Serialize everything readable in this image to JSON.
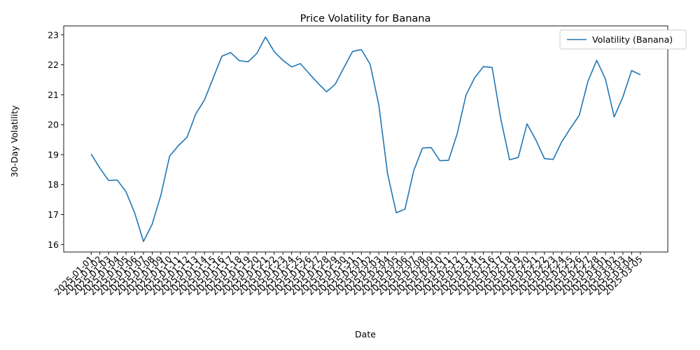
{
  "chart_data": {
    "type": "line",
    "title": "Price Volatility for Banana",
    "xlabel": "Date",
    "ylabel": "30-Day Volatility",
    "ylim": [
      15.75,
      23.3
    ],
    "yticks": [
      16,
      17,
      18,
      19,
      20,
      21,
      22,
      23
    ],
    "grid": false,
    "legend_position": "top-right",
    "x": [
      "2025-01-01",
      "2025-01-02",
      "2025-01-03",
      "2025-01-04",
      "2025-01-05",
      "2025-01-06",
      "2025-01-07",
      "2025-01-08",
      "2025-01-09",
      "2025-01-10",
      "2025-01-11",
      "2025-01-12",
      "2025-01-13",
      "2025-01-14",
      "2025-01-15",
      "2025-01-16",
      "2025-01-17",
      "2025-01-18",
      "2025-01-19",
      "2025-01-20",
      "2025-01-21",
      "2025-01-22",
      "2025-01-23",
      "2025-01-24",
      "2025-01-25",
      "2025-01-26",
      "2025-01-27",
      "2025-01-28",
      "2025-01-29",
      "2025-01-30",
      "2025-01-31",
      "2025-02-01",
      "2025-02-02",
      "2025-02-03",
      "2025-02-04",
      "2025-02-05",
      "2025-02-06",
      "2025-02-07",
      "2025-02-08",
      "2025-02-09",
      "2025-02-10",
      "2025-02-11",
      "2025-02-12",
      "2025-02-13",
      "2025-02-14",
      "2025-02-15",
      "2025-02-16",
      "2025-02-17",
      "2025-02-18",
      "2025-02-19",
      "2025-02-20",
      "2025-02-21",
      "2025-02-22",
      "2025-02-23",
      "2025-02-24",
      "2025-02-25",
      "2025-02-26",
      "2025-02-27",
      "2025-02-28",
      "2025-03-01",
      "2025-03-02",
      "2025-03-03",
      "2025-03-04",
      "2025-03-05"
    ],
    "series": [
      {
        "name": "Volatility (Banana)",
        "color": "#1f77b4",
        "values": [
          19.02,
          18.55,
          18.14,
          18.15,
          17.76,
          17.05,
          16.1,
          16.68,
          17.65,
          18.95,
          19.3,
          19.58,
          20.36,
          20.83,
          21.56,
          22.29,
          22.41,
          22.14,
          22.1,
          22.38,
          22.93,
          22.44,
          22.15,
          21.93,
          22.04,
          21.71,
          21.39,
          21.1,
          21.35,
          21.91,
          22.45,
          22.51,
          22.02,
          20.66,
          18.37,
          17.06,
          17.18,
          18.46,
          19.22,
          19.24,
          18.8,
          18.81,
          19.71,
          20.99,
          21.57,
          21.94,
          21.91,
          20.18,
          18.83,
          18.91,
          20.03,
          19.5,
          18.87,
          18.84,
          19.44,
          19.89,
          20.32,
          21.46,
          22.15,
          21.52,
          20.26,
          20.93,
          21.81,
          21.67
        ]
      }
    ]
  }
}
